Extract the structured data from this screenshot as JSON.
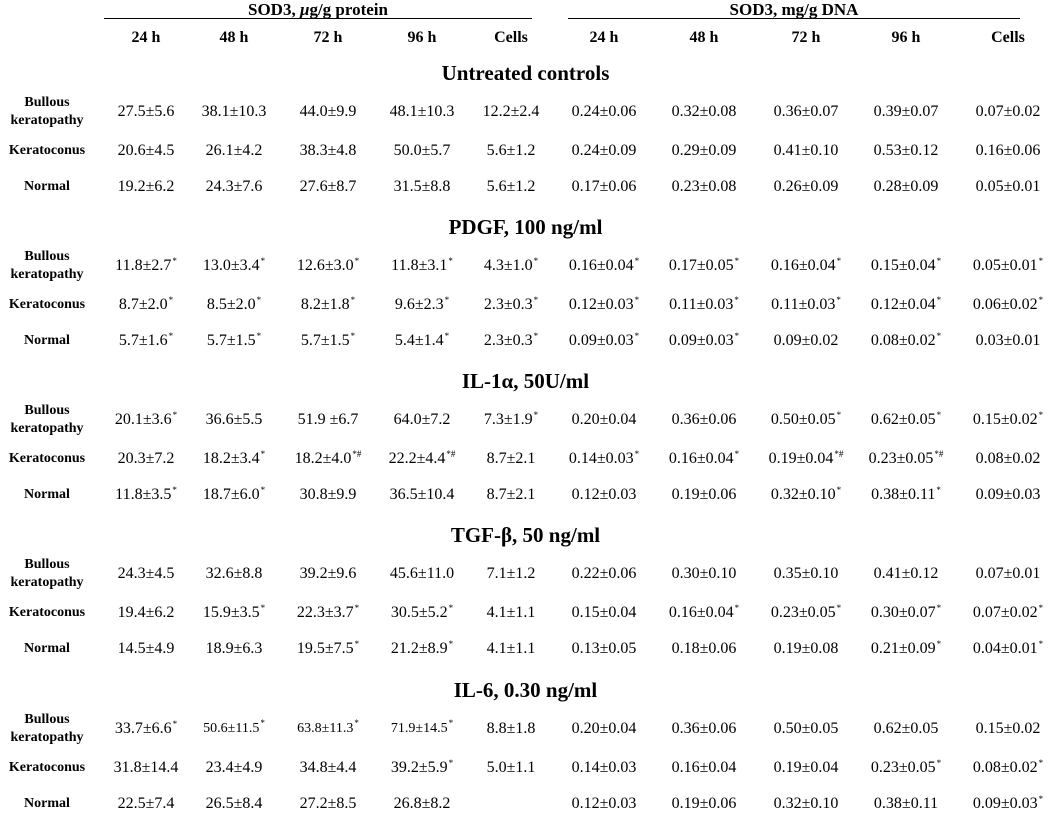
{
  "header": {
    "left_group": {
      "name": "SOD3, ",
      "unit_italic": "μ",
      "unit_rest": "g/g protein"
    },
    "right_group": {
      "name": "SOD3, mg/g DNA"
    },
    "columns": [
      "24 h",
      "48 h",
      "72 h",
      "96 h",
      "Cells",
      "24 h",
      "48 h",
      "72 h",
      "96 h",
      "Cells"
    ]
  },
  "sections": [
    {
      "title": "Untreated controls",
      "rows": [
        {
          "label": [
            "Bullous",
            "keratopathy"
          ],
          "cells": [
            {
              "v": "27.5±5.6",
              "m": ""
            },
            {
              "v": "38.1±10.3",
              "m": ""
            },
            {
              "v": "44.0±9.9",
              "m": ""
            },
            {
              "v": "48.1±10.3",
              "m": ""
            },
            {
              "v": "12.2±2.4",
              "m": ""
            },
            {
              "v": "0.24±0.06",
              "m": ""
            },
            {
              "v": "0.32±0.08",
              "m": ""
            },
            {
              "v": "0.36±0.07",
              "m": ""
            },
            {
              "v": "0.39±0.07",
              "m": ""
            },
            {
              "v": "0.07±0.02",
              "m": ""
            }
          ]
        },
        {
          "label": [
            "Keratoconus"
          ],
          "cells": [
            {
              "v": "20.6±4.5",
              "m": ""
            },
            {
              "v": "26.1±4.2",
              "m": ""
            },
            {
              "v": "38.3±4.8",
              "m": ""
            },
            {
              "v": "50.0±5.7",
              "m": ""
            },
            {
              "v": "5.6±1.2",
              "m": ""
            },
            {
              "v": "0.24±0.09",
              "m": ""
            },
            {
              "v": "0.29±0.09",
              "m": ""
            },
            {
              "v": "0.41±0.10",
              "m": ""
            },
            {
              "v": "0.53±0.12",
              "m": ""
            },
            {
              "v": "0.16±0.06",
              "m": ""
            }
          ]
        },
        {
          "label": [
            "Normal"
          ],
          "cells": [
            {
              "v": "19.2±6.2",
              "m": ""
            },
            {
              "v": "24.3±7.6",
              "m": ""
            },
            {
              "v": "27.6±8.7",
              "m": ""
            },
            {
              "v": "31.5±8.8",
              "m": ""
            },
            {
              "v": "5.6±1.2",
              "m": ""
            },
            {
              "v": "0.17±0.06",
              "m": ""
            },
            {
              "v": "0.23±0.08",
              "m": ""
            },
            {
              "v": "0.26±0.09",
              "m": ""
            },
            {
              "v": "0.28±0.09",
              "m": ""
            },
            {
              "v": "0.05±0.01",
              "m": ""
            }
          ]
        }
      ]
    },
    {
      "title": "PDGF, 100 ng/ml",
      "rows": [
        {
          "label": [
            "Bullous",
            "keratopathy"
          ],
          "cells": [
            {
              "v": "11.8±2.7",
              "m": "*"
            },
            {
              "v": "13.0±3.4",
              "m": "*"
            },
            {
              "v": "12.6±3.0",
              "m": "*"
            },
            {
              "v": "11.8±3.1",
              "m": "*"
            },
            {
              "v": "4.3±1.0",
              "m": "*"
            },
            {
              "v": "0.16±0.04",
              "m": "*"
            },
            {
              "v": "0.17±0.05",
              "m": "*"
            },
            {
              "v": "0.16±0.04",
              "m": "*"
            },
            {
              "v": "0.15±0.04",
              "m": "*"
            },
            {
              "v": "0.05±0.01",
              "m": "*"
            }
          ]
        },
        {
          "label": [
            "Keratoconus"
          ],
          "cells": [
            {
              "v": "8.7±2.0",
              "m": "*"
            },
            {
              "v": "8.5±2.0",
              "m": "*"
            },
            {
              "v": "8.2±1.8",
              "m": "*"
            },
            {
              "v": "9.6±2.3",
              "m": "*"
            },
            {
              "v": "2.3±0.3",
              "m": "*"
            },
            {
              "v": "0.12±0.03",
              "m": "*"
            },
            {
              "v": "0.11±0.03",
              "m": "*"
            },
            {
              "v": "0.11±0.03",
              "m": "*"
            },
            {
              "v": "0.12±0.04",
              "m": "*"
            },
            {
              "v": "0.06±0.02",
              "m": "*"
            }
          ]
        },
        {
          "label": [
            "Normal"
          ],
          "cells": [
            {
              "v": "5.7±1.6",
              "m": "*"
            },
            {
              "v": "5.7±1.5",
              "m": "*"
            },
            {
              "v": "5.7±1.5",
              "m": "*"
            },
            {
              "v": "5.4±1.4",
              "m": "*"
            },
            {
              "v": "2.3±0.3",
              "m": "*"
            },
            {
              "v": "0.09±0.03",
              "m": "*"
            },
            {
              "v": "0.09±0.03",
              "m": "*"
            },
            {
              "v": "0.09±0.02",
              "m": ""
            },
            {
              "v": "0.08±0.02",
              "m": "*"
            },
            {
              "v": "0.03±0.01",
              "m": ""
            }
          ]
        }
      ]
    },
    {
      "title": "IL-1α,  50U/ml",
      "rows": [
        {
          "label": [
            "Bullous",
            "keratopathy"
          ],
          "cells": [
            {
              "v": "20.1±3.6",
              "m": "*"
            },
            {
              "v": "36.6±5.5",
              "m": ""
            },
            {
              "v": "51.9 ±6.7",
              "m": ""
            },
            {
              "v": "64.0±7.2",
              "m": ""
            },
            {
              "v": "7.3±1.9",
              "m": "*"
            },
            {
              "v": "0.20±0.04",
              "m": ""
            },
            {
              "v": "0.36±0.06",
              "m": ""
            },
            {
              "v": "0.50±0.05",
              "m": "*"
            },
            {
              "v": "0.62±0.05",
              "m": "*"
            },
            {
              "v": "0.15±0.02",
              "m": "*"
            }
          ]
        },
        {
          "label": [
            "Keratoconus"
          ],
          "cells": [
            {
              "v": "20.3±7.2",
              "m": ""
            },
            {
              "v": "18.2±3.4",
              "m": "*"
            },
            {
              "v": "18.2±4.0",
              "m": "*#"
            },
            {
              "v": "22.2±4.4",
              "m": "*#"
            },
            {
              "v": "8.7±2.1",
              "m": ""
            },
            {
              "v": "0.14±0.03",
              "m": "*"
            },
            {
              "v": "0.16±0.04",
              "m": "*"
            },
            {
              "v": "0.19±0.04",
              "m": "*#"
            },
            {
              "v": "0.23±0.05",
              "m": "*#"
            },
            {
              "v": "0.08±0.02",
              "m": ""
            }
          ]
        },
        {
          "label": [
            "Normal"
          ],
          "cells": [
            {
              "v": "11.8±3.5",
              "m": "*"
            },
            {
              "v": "18.7±6.0",
              "m": "*"
            },
            {
              "v": "30.8±9.9",
              "m": ""
            },
            {
              "v": "36.5±10.4",
              "m": ""
            },
            {
              "v": "8.7±2.1",
              "m": ""
            },
            {
              "v": "0.12±0.03",
              "m": ""
            },
            {
              "v": "0.19±0.06",
              "m": ""
            },
            {
              "v": "0.32±0.10",
              "m": "*"
            },
            {
              "v": "0.38±0.11",
              "m": "*"
            },
            {
              "v": "0.09±0.03",
              "m": ""
            }
          ]
        }
      ]
    },
    {
      "title": "TGF-β, 50 ng/ml",
      "rows": [
        {
          "label": [
            "Bullous",
            "keratopathy"
          ],
          "cells": [
            {
              "v": "24.3±4.5",
              "m": ""
            },
            {
              "v": "32.6±8.8",
              "m": ""
            },
            {
              "v": "39.2±9.6",
              "m": ""
            },
            {
              "v": "45.6±11.0",
              "m": ""
            },
            {
              "v": "7.1±1.2",
              "m": ""
            },
            {
              "v": "0.22±0.06",
              "m": ""
            },
            {
              "v": "0.30±0.10",
              "m": ""
            },
            {
              "v": "0.35±0.10",
              "m": ""
            },
            {
              "v": "0.41±0.12",
              "m": ""
            },
            {
              "v": "0.07±0.01",
              "m": ""
            }
          ]
        },
        {
          "label": [
            "Keratoconus"
          ],
          "cells": [
            {
              "v": "19.4±6.2",
              "m": ""
            },
            {
              "v": "15.9±3.5",
              "m": "*"
            },
            {
              "v": "22.3±3.7",
              "m": "*"
            },
            {
              "v": "30.5±5.2",
              "m": "*"
            },
            {
              "v": "4.1±1.1",
              "m": ""
            },
            {
              "v": "0.15±0.04",
              "m": ""
            },
            {
              "v": "0.16±0.04",
              "m": "*"
            },
            {
              "v": "0.23±0.05",
              "m": "*"
            },
            {
              "v": "0.30±0.07",
              "m": "*"
            },
            {
              "v": "0.07±0.02",
              "m": "*"
            }
          ]
        },
        {
          "label": [
            "Normal"
          ],
          "cells": [
            {
              "v": "14.5±4.9",
              "m": ""
            },
            {
              "v": "18.9±6.3",
              "m": ""
            },
            {
              "v": "19.5±7.5",
              "m": "*"
            },
            {
              "v": "21.2±8.9",
              "m": "*"
            },
            {
              "v": "4.1±1.1",
              "m": ""
            },
            {
              "v": "0.13±0.05",
              "m": ""
            },
            {
              "v": "0.18±0.06",
              "m": ""
            },
            {
              "v": "0.19±0.08",
              "m": ""
            },
            {
              "v": "0.21±0.09",
              "m": "*"
            },
            {
              "v": "0.04±0.01",
              "m": "*"
            }
          ]
        }
      ]
    },
    {
      "title": "IL-6, 0.30 ng/ml",
      "rows": [
        {
          "label": [
            "Bullous",
            "keratopathy"
          ],
          "cells": [
            {
              "v": "33.7±6.6",
              "m": "*"
            },
            {
              "v": "50.6±11.5",
              "m": "*",
              "small": true
            },
            {
              "v": "63.8±11.3",
              "m": "*",
              "small": true
            },
            {
              "v": "71.9±14.5",
              "m": "*",
              "small": true
            },
            {
              "v": "8.8±1.8",
              "m": ""
            },
            {
              "v": "0.20±0.04",
              "m": ""
            },
            {
              "v": "0.36±0.06",
              "m": ""
            },
            {
              "v": "0.50±0.05",
              "m": ""
            },
            {
              "v": "0.62±0.05",
              "m": ""
            },
            {
              "v": "0.15±0.02",
              "m": ""
            }
          ]
        },
        {
          "label": [
            "Keratoconus"
          ],
          "cells": [
            {
              "v": "31.8±14.4",
              "m": ""
            },
            {
              "v": "23.4±4.9",
              "m": ""
            },
            {
              "v": "34.8±4.4",
              "m": ""
            },
            {
              "v": "39.2±5.9",
              "m": "*"
            },
            {
              "v": "5.0±1.1",
              "m": ""
            },
            {
              "v": "0.14±0.03",
              "m": ""
            },
            {
              "v": "0.16±0.04",
              "m": ""
            },
            {
              "v": "0.19±0.04",
              "m": ""
            },
            {
              "v": "0.23±0.05",
              "m": "*"
            },
            {
              "v": "0.08±0.02",
              "m": "*"
            }
          ]
        },
        {
          "label": [
            "Normal"
          ],
          "cells": [
            {
              "v": "22.5±7.4",
              "m": ""
            },
            {
              "v": "26.5±8.4",
              "m": ""
            },
            {
              "v": "27.2±8.5",
              "m": ""
            },
            {
              "v": "26.8±8.2",
              "m": ""
            },
            {
              "v": "",
              "m": ""
            },
            {
              "v": "0.12±0.03",
              "m": ""
            },
            {
              "v": "0.19±0.06",
              "m": ""
            },
            {
              "v": "0.32±0.10",
              "m": ""
            },
            {
              "v": "0.38±0.11",
              "m": ""
            },
            {
              "v": "0.09±0.03",
              "m": "*"
            }
          ]
        }
      ]
    }
  ]
}
